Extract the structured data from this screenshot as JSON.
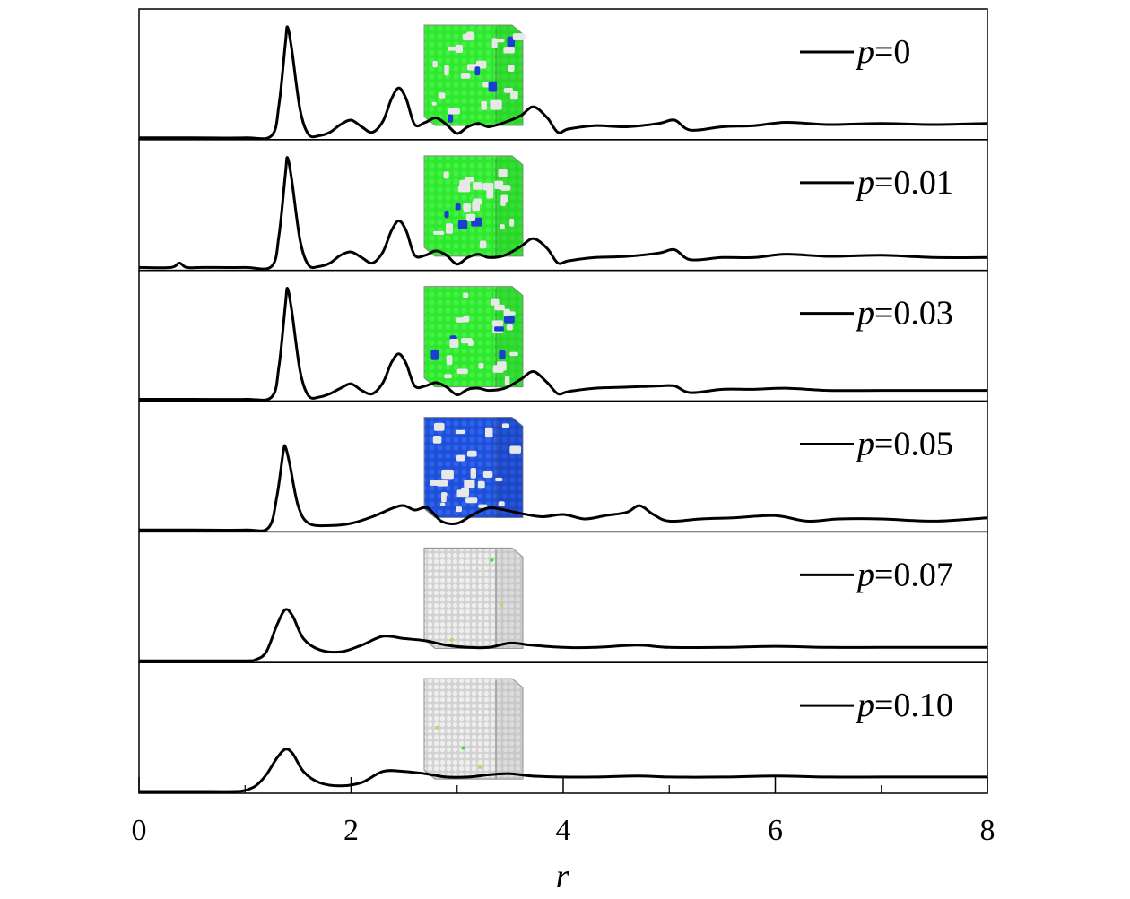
{
  "chart_data": {
    "type": "line",
    "layout": "stacked-panels",
    "xlabel": "r",
    "xlim": [
      0,
      8
    ],
    "xticks": [
      "0",
      "2",
      "4",
      "6",
      "8"
    ],
    "grid": false,
    "legend_placement": "top-right of each panel",
    "series": [
      {
        "name": "p=0",
        "label_var": "p",
        "label_val": "=0",
        "inset": {
          "base": "green",
          "spots": [
            "white",
            "blue"
          ]
        },
        "x": [
          0,
          0.5,
          1.0,
          1.25,
          1.32,
          1.38,
          1.4,
          1.44,
          1.52,
          1.6,
          1.7,
          1.8,
          1.9,
          2.0,
          2.1,
          2.2,
          2.3,
          2.38,
          2.45,
          2.52,
          2.6,
          2.7,
          2.8,
          2.9,
          3.0,
          3.1,
          3.2,
          3.3,
          3.45,
          3.6,
          3.72,
          3.85,
          3.95,
          4.05,
          4.3,
          4.6,
          4.9,
          5.05,
          5.2,
          5.5,
          5.8,
          6.1,
          6.5,
          7.0,
          7.5,
          8.0
        ],
        "y": [
          0,
          0,
          0,
          0.02,
          0.3,
          0.85,
          1.0,
          0.8,
          0.25,
          0.03,
          0.02,
          0.05,
          0.12,
          0.16,
          0.1,
          0.05,
          0.15,
          0.35,
          0.45,
          0.35,
          0.12,
          0.14,
          0.18,
          0.12,
          0.04,
          0.1,
          0.13,
          0.1,
          0.14,
          0.2,
          0.28,
          0.18,
          0.05,
          0.08,
          0.11,
          0.1,
          0.13,
          0.16,
          0.07,
          0.1,
          0.11,
          0.14,
          0.12,
          0.13,
          0.12,
          0.13
        ]
      },
      {
        "name": "p=0.01",
        "label_var": "p",
        "label_val": "=0.01",
        "inset": {
          "base": "green",
          "spots": [
            "white",
            "blue"
          ]
        },
        "x": [
          0,
          0.3,
          0.38,
          0.45,
          0.6,
          1.0,
          1.25,
          1.32,
          1.38,
          1.4,
          1.44,
          1.52,
          1.6,
          1.7,
          1.8,
          1.9,
          2.0,
          2.1,
          2.2,
          2.3,
          2.38,
          2.45,
          2.52,
          2.6,
          2.7,
          2.8,
          2.9,
          3.0,
          3.1,
          3.2,
          3.3,
          3.45,
          3.6,
          3.72,
          3.85,
          3.95,
          4.05,
          4.3,
          4.6,
          4.9,
          5.05,
          5.2,
          5.5,
          5.8,
          6.1,
          6.5,
          7.0,
          7.5,
          8.0
        ],
        "y": [
          0.01,
          0.01,
          0.05,
          0.01,
          0.01,
          0.01,
          0.02,
          0.3,
          0.85,
          1.0,
          0.8,
          0.25,
          0.03,
          0.02,
          0.05,
          0.12,
          0.15,
          0.1,
          0.05,
          0.15,
          0.34,
          0.43,
          0.34,
          0.12,
          0.12,
          0.16,
          0.12,
          0.04,
          0.1,
          0.13,
          0.1,
          0.12,
          0.2,
          0.27,
          0.18,
          0.05,
          0.07,
          0.1,
          0.11,
          0.14,
          0.17,
          0.08,
          0.1,
          0.1,
          0.13,
          0.11,
          0.12,
          0.1,
          0.1
        ]
      },
      {
        "name": "p=0.03",
        "label_var": "p",
        "label_val": "=0.03",
        "inset": {
          "base": "green",
          "spots": [
            "white",
            "blue"
          ]
        },
        "x": [
          0,
          0.5,
          1.0,
          1.25,
          1.32,
          1.38,
          1.4,
          1.44,
          1.52,
          1.6,
          1.7,
          1.8,
          1.9,
          2.0,
          2.1,
          2.2,
          2.3,
          2.38,
          2.45,
          2.52,
          2.6,
          2.7,
          2.8,
          2.9,
          3.0,
          3.1,
          3.2,
          3.3,
          3.45,
          3.6,
          3.72,
          3.85,
          3.95,
          4.05,
          4.3,
          4.6,
          4.9,
          5.05,
          5.2,
          5.5,
          5.8,
          6.1,
          6.5,
          7.0,
          7.5,
          8.0
        ],
        "y": [
          0,
          0,
          0,
          0.02,
          0.3,
          0.85,
          1.0,
          0.8,
          0.25,
          0.03,
          0.02,
          0.05,
          0.1,
          0.14,
          0.08,
          0.05,
          0.15,
          0.33,
          0.41,
          0.32,
          0.12,
          0.12,
          0.15,
          0.11,
          0.04,
          0.09,
          0.1,
          0.08,
          0.1,
          0.18,
          0.25,
          0.15,
          0.05,
          0.07,
          0.1,
          0.11,
          0.12,
          0.12,
          0.06,
          0.09,
          0.09,
          0.1,
          0.08,
          0.08,
          0.08,
          0.08
        ]
      },
      {
        "name": "p=0.05",
        "label_var": "p",
        "label_val": "=0.05",
        "inset": {
          "base": "blue",
          "spots": [
            "white"
          ]
        },
        "x": [
          0,
          0.5,
          1.0,
          1.22,
          1.3,
          1.36,
          1.38,
          1.42,
          1.5,
          1.6,
          1.8,
          2.0,
          2.2,
          2.4,
          2.5,
          2.6,
          2.72,
          2.85,
          3.0,
          3.15,
          3.3,
          3.45,
          3.6,
          3.8,
          4.0,
          4.2,
          4.4,
          4.6,
          4.72,
          4.85,
          5.0,
          5.3,
          5.6,
          6.0,
          6.3,
          6.6,
          7.0,
          7.5,
          8.0
        ],
        "y": [
          0,
          0,
          0,
          0.02,
          0.3,
          0.7,
          0.75,
          0.6,
          0.22,
          0.06,
          0.04,
          0.06,
          0.12,
          0.2,
          0.22,
          0.18,
          0.2,
          0.08,
          0.06,
          0.14,
          0.2,
          0.18,
          0.15,
          0.12,
          0.14,
          0.1,
          0.13,
          0.16,
          0.22,
          0.14,
          0.08,
          0.1,
          0.11,
          0.13,
          0.08,
          0.1,
          0.1,
          0.08,
          0.11
        ]
      },
      {
        "name": "p=0.07",
        "label_var": "p",
        "label_val": "=0.07",
        "inset": {
          "base": "white",
          "spots": []
        },
        "x": [
          0,
          0.5,
          1.0,
          1.1,
          1.2,
          1.3,
          1.38,
          1.45,
          1.55,
          1.7,
          1.9,
          2.1,
          2.3,
          2.5,
          2.7,
          2.9,
          3.1,
          3.3,
          3.5,
          3.7,
          4.0,
          4.3,
          4.7,
          5.0,
          5.5,
          6.0,
          6.5,
          7.0,
          7.5,
          8.0
        ],
        "y": [
          0,
          0,
          0,
          0.01,
          0.08,
          0.32,
          0.46,
          0.4,
          0.2,
          0.1,
          0.08,
          0.14,
          0.22,
          0.2,
          0.18,
          0.14,
          0.12,
          0.12,
          0.16,
          0.14,
          0.12,
          0.12,
          0.14,
          0.12,
          0.12,
          0.13,
          0.12,
          0.12,
          0.12,
          0.12
        ]
      },
      {
        "name": "p=0.10",
        "label_var": "p",
        "label_val": "=0.10",
        "inset": {
          "base": "white",
          "spots": []
        },
        "x": [
          0,
          0.5,
          0.9,
          1.0,
          1.1,
          1.2,
          1.3,
          1.38,
          1.45,
          1.55,
          1.7,
          1.9,
          2.1,
          2.3,
          2.5,
          2.7,
          2.9,
          3.1,
          3.3,
          3.5,
          3.7,
          4.0,
          4.3,
          4.7,
          5.0,
          5.5,
          6.0,
          6.5,
          7.0,
          7.5,
          8.0
        ],
        "y": [
          0,
          0,
          0,
          0.01,
          0.05,
          0.15,
          0.3,
          0.38,
          0.34,
          0.18,
          0.08,
          0.05,
          0.08,
          0.18,
          0.18,
          0.16,
          0.13,
          0.13,
          0.15,
          0.16,
          0.14,
          0.13,
          0.13,
          0.14,
          0.13,
          0.13,
          0.14,
          0.13,
          0.13,
          0.13,
          0.13
        ]
      }
    ]
  }
}
